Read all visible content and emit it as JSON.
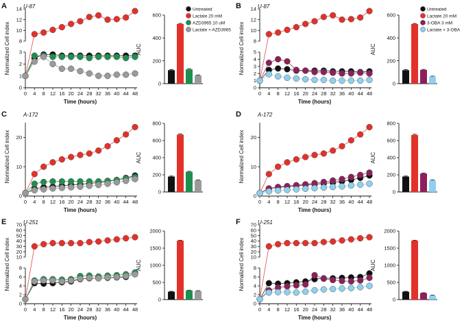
{
  "colors": {
    "untreated": "#111111",
    "lactate": "#e3312a",
    "azd3965": "#1f8f4f",
    "lactate_azd3965": "#9a9a9a",
    "oba": "#8e1f59",
    "lactate_oba": "#8ed0ee"
  },
  "panels": [
    {
      "letter": "A",
      "cell_line": "U-87",
      "legend": [
        "Untreated",
        "Lactate 20 mM",
        "AZD3965 10 uM",
        "Lactate + AZD3965"
      ]
    },
    {
      "letter": "B",
      "cell_line": "U-87",
      "legend": [
        "Untreated",
        "Lactate 20 mM",
        "3-OBA 3 mM",
        "Lactate + 3-OBA"
      ]
    },
    {
      "letter": "C",
      "cell_line": "A-172",
      "legend": []
    },
    {
      "letter": "D",
      "cell_line": "A-172",
      "legend": []
    },
    {
      "letter": "E",
      "cell_line": "U-251",
      "legend": []
    },
    {
      "letter": "F",
      "cell_line": "U-251",
      "legend": []
    }
  ],
  "chart_data": [
    {
      "panel": "A",
      "type": "line",
      "xlabel": "Time (hours)",
      "ylabel": "Normalized Cell index",
      "x": [
        0,
        4,
        8,
        12,
        16,
        20,
        24,
        28,
        32,
        36,
        40,
        44,
        48
      ],
      "xticks": [
        "0",
        "4",
        "8",
        "12",
        "16",
        "20",
        "24",
        "28",
        "32",
        "36",
        "40",
        "44",
        "48"
      ],
      "y_axis": "broken",
      "ylim_lower": [
        0,
        3
      ],
      "yticks_lower": [
        "0",
        "1",
        "2",
        "3"
      ],
      "ylim_upper": [
        8,
        14
      ],
      "yticks_upper": [
        "8",
        "10",
        "12",
        "14"
      ],
      "series": [
        {
          "name": "Untreated",
          "color_key": "untreated",
          "values": [
            1,
            2.5,
            2.8,
            2.8,
            2.7,
            2.7,
            2.7,
            2.7,
            2.7,
            2.7,
            2.7,
            2.7,
            2.7
          ]
        },
        {
          "name": "Lactate 20 mM",
          "color_key": "lactate",
          "values": [
            1,
            9.3,
            9.6,
            10.1,
            10.6,
            11.2,
            11.7,
            12.5,
            12.8,
            12.0,
            12.1,
            12.4,
            13.6
          ]
        },
        {
          "name": "AZD3965 10 uM",
          "color_key": "azd3965",
          "values": [
            1,
            2.7,
            2.7,
            2.6,
            2.6,
            2.6,
            2.6,
            2.5,
            2.6,
            2.6,
            2.6,
            2.5,
            2.6
          ]
        },
        {
          "name": "Lactate + AZD3965",
          "color_key": "lactate_azd3965",
          "values": [
            1,
            2.2,
            2.6,
            2.0,
            1.6,
            1.6,
            1.4,
            1.2,
            1.0,
            1.0,
            1.1,
            1.1,
            1.2
          ]
        }
      ]
    },
    {
      "panel": "A",
      "type": "bar",
      "ylabel": "AUC",
      "categories": [
        "Untreated",
        "Lactate 20 mM",
        "AZD3965 10 uM",
        "Lactate + AZD3965"
      ],
      "color_keys": [
        "untreated",
        "lactate",
        "azd3965",
        "lactate_azd3965"
      ],
      "values": [
        118,
        522,
        125,
        72
      ],
      "errors": [
        6,
        5,
        6,
        4
      ],
      "ylim": [
        0,
        600
      ],
      "yticks": [
        0,
        200,
        400,
        600
      ]
    },
    {
      "panel": "B",
      "type": "line",
      "xlabel": "Time (hours)",
      "ylabel": "Normalized Cell index",
      "x": [
        0,
        4,
        8,
        12,
        16,
        20,
        24,
        28,
        32,
        36,
        40,
        44,
        48
      ],
      "xticks": [
        "0",
        "4",
        "8",
        "12",
        "16",
        "20",
        "24",
        "28",
        "32",
        "36",
        "40",
        "44",
        "48"
      ],
      "y_axis": "broken",
      "ylim_lower": [
        0,
        5
      ],
      "yticks_lower": [
        "0",
        "1",
        "2",
        "3",
        "4",
        "5"
      ],
      "ylim_upper": [
        8,
        14
      ],
      "yticks_upper": [
        "8",
        "10",
        "12",
        "14"
      ],
      "series": [
        {
          "name": "Untreated",
          "color_key": "untreated",
          "values": [
            1,
            2.5,
            2.7,
            2.6,
            2.4,
            2.4,
            2.4,
            2.4,
            2.3,
            2.3,
            2.3,
            2.2,
            2.3
          ]
        },
        {
          "name": "Lactate 20 mM",
          "color_key": "lactate",
          "values": [
            1,
            9.3,
            9.6,
            10.1,
            10.6,
            11.2,
            11.7,
            12.5,
            12.8,
            12.0,
            12.1,
            12.4,
            13.6
          ]
        },
        {
          "name": "3-OBA 3 mM",
          "color_key": "oba",
          "values": [
            1,
            3.5,
            4.0,
            3.7,
            2.5,
            2.4,
            2.2,
            2.2,
            2.1,
            2.0,
            2.0,
            2.1,
            2.0
          ]
        },
        {
          "name": "Lactate + 3-OBA",
          "color_key": "lactate_oba",
          "values": [
            1,
            1.9,
            1.6,
            1.4,
            1.3,
            1.2,
            1.1,
            1.1,
            1.0,
            1.0,
            1.0,
            1.0,
            1.1
          ]
        }
      ]
    },
    {
      "panel": "B",
      "type": "bar",
      "ylabel": "AUC",
      "categories": [
        "Untreated",
        "Lactate 20 mM",
        "3-OBA 3 mM",
        "Lactate + 3-OBA"
      ],
      "color_keys": [
        "untreated",
        "lactate",
        "oba",
        "lactate_oba"
      ],
      "values": [
        118,
        522,
        120,
        62
      ],
      "errors": [
        6,
        5,
        5,
        4
      ],
      "ylim": [
        0,
        600
      ],
      "yticks": [
        0,
        200,
        400,
        600
      ]
    },
    {
      "panel": "C",
      "type": "line",
      "xlabel": "Time (hours)",
      "ylabel": "Normalized Cell index",
      "x": [
        0,
        4,
        8,
        12,
        16,
        20,
        24,
        28,
        32,
        36,
        40,
        44,
        48
      ],
      "xticks": [
        "0",
        "4",
        "8",
        "12",
        "16",
        "20",
        "24",
        "28",
        "32",
        "36",
        "40",
        "44",
        "48"
      ],
      "y_axis": "linear",
      "ylim": [
        0,
        25
      ],
      "yticks": [
        "0",
        "10",
        "20"
      ],
      "series": [
        {
          "name": "Untreated",
          "color_key": "untreated",
          "values": [
            1,
            2.5,
            3,
            3.2,
            3.5,
            3.8,
            4.0,
            4.3,
            4.6,
            5.0,
            5.5,
            6.2,
            7.0
          ]
        },
        {
          "name": "Lactate 20 mM",
          "color_key": "lactate",
          "values": [
            1,
            7.5,
            10,
            11.5,
            12.5,
            13.3,
            14,
            14.5,
            15.5,
            17,
            19,
            21,
            23.5
          ]
        },
        {
          "name": "AZD3965 10 uM",
          "color_key": "azd3965",
          "values": [
            1,
            4.2,
            4.8,
            5,
            5,
            5,
            5,
            5,
            5,
            5.2,
            5.5,
            6,
            6.5
          ]
        },
        {
          "name": "Lactate + AZD3965",
          "color_key": "lactate_azd3965",
          "values": [
            1,
            2.0,
            2.3,
            2.6,
            2.8,
            3.0,
            3.2,
            3.5,
            3.8,
            4.2,
            4.7,
            5.2,
            5.8
          ]
        }
      ]
    },
    {
      "panel": "C",
      "type": "bar",
      "ylabel": "AUC",
      "categories": [
        "Untreated",
        "Lactate 20 mM",
        "AZD3965 10 uM",
        "Lactate + AZD3965"
      ],
      "color_keys": [
        "untreated",
        "lactate",
        "azd3965",
        "lactate_azd3965"
      ],
      "values": [
        180,
        670,
        235,
        135
      ],
      "errors": [
        6,
        8,
        5,
        5
      ],
      "ylim": [
        0,
        800
      ],
      "yticks": [
        0,
        200,
        400,
        600,
        800
      ]
    },
    {
      "panel": "D",
      "type": "line",
      "xlabel": "Time (hours)",
      "ylabel": "Normalized Cell index",
      "x": [
        0,
        4,
        8,
        12,
        16,
        20,
        24,
        28,
        32,
        36,
        40,
        44,
        48
      ],
      "xticks": [
        "0",
        "4",
        "8",
        "12",
        "16",
        "20",
        "24",
        "28",
        "32",
        "36",
        "40",
        "44",
        "48"
      ],
      "y_axis": "linear",
      "ylim": [
        0,
        25
      ],
      "yticks": [
        "0",
        "10",
        "20"
      ],
      "series": [
        {
          "name": "Untreated",
          "color_key": "untreated",
          "values": [
            1,
            2.5,
            3,
            3.2,
            3.5,
            3.8,
            4.0,
            4.3,
            4.6,
            5.0,
            5.5,
            6.2,
            7.0
          ]
        },
        {
          "name": "Lactate 20 mM",
          "color_key": "lactate",
          "values": [
            1,
            7.5,
            10,
            11.5,
            12.5,
            13.3,
            14,
            14.5,
            15.5,
            17,
            19,
            21,
            23.5
          ]
        },
        {
          "name": "3-OBA 3 mM",
          "color_key": "oba",
          "values": [
            1,
            2.6,
            3.1,
            3.4,
            3.7,
            4.0,
            4.4,
            4.8,
            5.3,
            5.8,
            6.5,
            7.2,
            8.0
          ]
        },
        {
          "name": "Lactate + 3-OBA",
          "color_key": "lactate_oba",
          "values": [
            1,
            1.6,
            1.9,
            2.1,
            2.3,
            2.5,
            2.7,
            2.9,
            3.1,
            3.3,
            3.6,
            3.9,
            4.2
          ]
        }
      ]
    },
    {
      "panel": "D",
      "type": "bar",
      "ylabel": "AUC",
      "categories": [
        "Untreated",
        "Lactate 20 mM",
        "3-OBA 3 mM",
        "Lactate + 3-OBA"
      ],
      "color_keys": [
        "untreated",
        "lactate",
        "oba",
        "lactate_oba"
      ],
      "values": [
        180,
        665,
        215,
        135
      ],
      "errors": [
        6,
        8,
        5,
        5
      ],
      "ylim": [
        0,
        800
      ],
      "yticks": [
        0,
        200,
        400,
        600,
        800
      ]
    },
    {
      "panel": "E",
      "type": "line",
      "xlabel": "Time (hours)",
      "ylabel": "Normalized Cell index",
      "x": [
        0,
        4,
        8,
        12,
        16,
        20,
        24,
        28,
        32,
        36,
        40,
        44,
        48
      ],
      "xticks": [
        "0",
        "4",
        "8",
        "12",
        "16",
        "20",
        "24",
        "28",
        "32",
        "36",
        "40",
        "44",
        "48"
      ],
      "y_axis": "broken",
      "ylim_lower": [
        0,
        8
      ],
      "yticks_lower": [
        "0",
        "2",
        "4",
        "6",
        "8"
      ],
      "ylim_upper": [
        10,
        70
      ],
      "yticks_upper": [
        "10",
        "20",
        "30",
        "40",
        "50",
        "60",
        "70"
      ],
      "series": [
        {
          "name": "Untreated",
          "color_key": "untreated",
          "values": [
            1,
            4.6,
            4.5,
            4.6,
            4.8,
            5.0,
            5.5,
            5.7,
            5.7,
            5.8,
            5.9,
            6.0,
            6.8
          ]
        },
        {
          "name": "Lactate 20 mM",
          "color_key": "lactate",
          "values": [
            1,
            30,
            34,
            36,
            36,
            36,
            36,
            38,
            39,
            41,
            43,
            45,
            47
          ]
        },
        {
          "name": "AZD3965 10 uM",
          "color_key": "azd3965",
          "values": [
            1,
            5.2,
            5.5,
            5.5,
            5.4,
            5.5,
            6.2,
            6.3,
            6.1,
            6.3,
            6.4,
            6.6,
            7.0
          ]
        },
        {
          "name": "Lactate + AZD3965",
          "color_key": "lactate_azd3965",
          "values": [
            1,
            5.0,
            5.2,
            5.2,
            5.0,
            5.2,
            5.6,
            5.8,
            5.7,
            5.9,
            6.0,
            6.2,
            6.6
          ]
        }
      ]
    },
    {
      "panel": "E",
      "type": "bar",
      "ylabel": "AUC",
      "categories": [
        "Untreated",
        "Lactate 20 mM",
        "AZD3965 10 uM",
        "Lactate + AZD3965"
      ],
      "color_keys": [
        "untreated",
        "lactate",
        "azd3965",
        "lactate_azd3965"
      ],
      "values": [
        230,
        1720,
        265,
        250
      ],
      "errors": [
        10,
        10,
        10,
        10
      ],
      "ylim": [
        0,
        2000
      ],
      "yticks": [
        0,
        500,
        1000,
        1500,
        2000
      ]
    },
    {
      "panel": "F",
      "type": "line",
      "xlabel": "Time (hours)",
      "ylabel": "Normalized Cell index",
      "x": [
        0,
        4,
        8,
        12,
        16,
        20,
        24,
        28,
        32,
        36,
        40,
        44,
        48
      ],
      "xticks": [
        "0",
        "4",
        "8",
        "12",
        "16",
        "20",
        "24",
        "28",
        "32",
        "36",
        "40",
        "44",
        "48"
      ],
      "y_axis": "broken",
      "ylim_lower": [
        0,
        8
      ],
      "yticks_lower": [
        "0",
        "2",
        "4",
        "6",
        "8"
      ],
      "ylim_upper": [
        10,
        70
      ],
      "yticks_upper": [
        "10",
        "20",
        "30",
        "40",
        "50",
        "60",
        "70"
      ],
      "series": [
        {
          "name": "Untreated",
          "color_key": "untreated",
          "values": [
            1,
            4.6,
            4.5,
            4.6,
            4.8,
            5.0,
            5.5,
            5.7,
            5.7,
            5.8,
            5.9,
            6.0,
            6.8
          ]
        },
        {
          "name": "Lactate 20 mM",
          "color_key": "lactate",
          "values": [
            1,
            30,
            34,
            36,
            36,
            36,
            36,
            38,
            39,
            41,
            43,
            45,
            47
          ]
        },
        {
          "name": "3-OBA 3 mM",
          "color_key": "oba",
          "values": [
            1,
            3.0,
            3.6,
            3.9,
            4.1,
            4.3,
            6.4,
            5.6,
            5.3,
            5.1,
            5.0,
            5.2,
            5.8
          ]
        },
        {
          "name": "Lactate + 3-OBA",
          "color_key": "lactate_oba",
          "values": [
            1,
            2.5,
            2.6,
            2.6,
            2.5,
            2.7,
            3.0,
            3.2,
            3.3,
            3.4,
            3.5,
            3.7,
            4.0
          ]
        }
      ]
    },
    {
      "panel": "F",
      "type": "bar",
      "ylabel": "AUC",
      "categories": [
        "Untreated",
        "Lactate 20 mM",
        "3-OBA 3 mM",
        "Lactate + 3-OBA"
      ],
      "color_keys": [
        "untreated",
        "lactate",
        "oba",
        "lactate_oba"
      ],
      "values": [
        230,
        1720,
        190,
        120
      ],
      "errors": [
        10,
        10,
        10,
        10
      ],
      "ylim": [
        0,
        2000
      ],
      "yticks": [
        0,
        500,
        1000,
        1500,
        2000
      ]
    }
  ]
}
